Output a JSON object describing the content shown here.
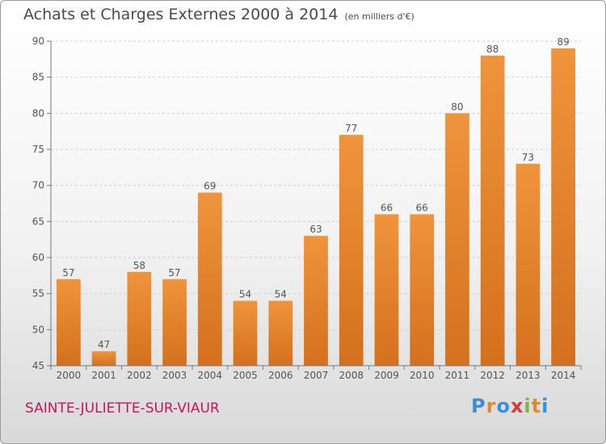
{
  "header": {
    "title": "Achats et Charges Externes 2000 à 2014",
    "subtitle": "(en milliers d'€)"
  },
  "footer": {
    "place": "SAINTE-JULIETTE-SUR-VIAUR",
    "logo": {
      "letters": [
        "P",
        "r",
        "o",
        "x",
        "i",
        "t",
        "i"
      ],
      "colors": [
        "#3b8fd6",
        "#e8862a",
        "#3b8fd6",
        "#d23c3c",
        "#7ab648",
        "#e8862a",
        "#3b8fd6"
      ]
    }
  },
  "chart_data": {
    "type": "bar",
    "title": "Achats et Charges Externes 2000 à 2014",
    "subtitle": "(en milliers d'€)",
    "categories": [
      "2000",
      "2001",
      "2002",
      "2003",
      "2004",
      "2005",
      "2006",
      "2007",
      "2008",
      "2009",
      "2010",
      "2011",
      "2012",
      "2013",
      "2014"
    ],
    "values": [
      57,
      47,
      58,
      57,
      69,
      54,
      54,
      63,
      77,
      66,
      66,
      80,
      88,
      73,
      89
    ],
    "ylim": [
      45,
      90
    ],
    "yticks": [
      45,
      50,
      55,
      60,
      65,
      70,
      75,
      80,
      85,
      90
    ],
    "grid": true,
    "bar_color": "#f0943c",
    "bar_color_dark": "#d4701e"
  }
}
